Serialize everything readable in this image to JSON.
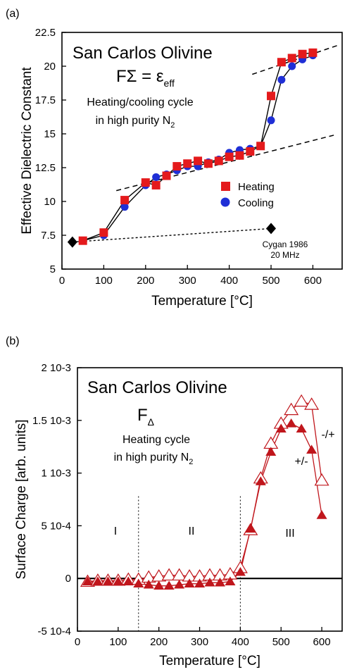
{
  "panels": [
    {
      "tag": "(a)",
      "title": "San Carlos Olivine",
      "formula_main": "FΣ = ε",
      "formula_sub": "eff",
      "note_line1": "Heating/cooling cycle",
      "note_line2": "in high purity N",
      "note_sub": "2",
      "ref_line1": "Cygan 1986",
      "ref_line2": "20 MHz"
    },
    {
      "tag": "(b)",
      "title": "San Carlos Olivine",
      "formula_main": "F",
      "formula_sub": "Δ",
      "note_line1": "Heating cycle",
      "note_line2": "in high purity N",
      "note_sub": "2",
      "region_labels": [
        "I",
        "II",
        "III"
      ],
      "curve_labels": [
        "-/+",
        "+/-"
      ]
    }
  ],
  "chart_data": [
    {
      "type": "scatter",
      "xlabel": "Temperature [°C]",
      "ylabel": "Effective Dielectric Constant",
      "xlim": [
        0,
        670
      ],
      "ylim": [
        5,
        22.5
      ],
      "xticks": [
        0,
        100,
        200,
        300,
        400,
        500,
        600
      ],
      "yticks": [
        5,
        7.5,
        10,
        12.5,
        15,
        17.5,
        20,
        22.5
      ],
      "ytick_labels": [
        "5",
        "7.5",
        "10",
        "12.5",
        "15",
        "17.5",
        "20",
        "22.5"
      ],
      "legend_position": "right-middle",
      "series": [
        {
          "name": "Heating",
          "color": "#e41a1c",
          "marker": "square",
          "x": [
            50,
            100,
            150,
            200,
            225,
            250,
            275,
            300,
            325,
            350,
            375,
            400,
            425,
            450,
            475,
            500,
            525,
            550,
            575,
            600
          ],
          "y": [
            7.1,
            7.7,
            10.1,
            11.4,
            11.2,
            11.9,
            12.6,
            12.8,
            13.0,
            12.8,
            13.0,
            13.3,
            13.4,
            13.7,
            14.1,
            17.8,
            20.3,
            20.6,
            20.9,
            21.0
          ]
        },
        {
          "name": "Cooling",
          "color": "#1f2fd6",
          "marker": "circle",
          "x": [
            100,
            150,
            200,
            225,
            250,
            275,
            300,
            325,
            350,
            375,
            400,
            425,
            450,
            475,
            500,
            525,
            550,
            575,
            600
          ],
          "y": [
            7.5,
            9.6,
            11.2,
            11.8,
            12.0,
            12.3,
            12.6,
            12.6,
            12.9,
            13.1,
            13.6,
            13.8,
            13.9,
            14.1,
            16.0,
            19.0,
            20.0,
            20.5,
            20.8
          ]
        },
        {
          "name": "Cygan 1986",
          "color": "#000000",
          "marker": "diamond",
          "x": [
            25,
            500
          ],
          "y": [
            7.0,
            8.0
          ]
        }
      ]
    },
    {
      "type": "scatter",
      "xlabel": "Temperature [°C]",
      "ylabel": "Surface Charge [arb. units]",
      "xlim": [
        0,
        650
      ],
      "ylim": [
        -0.0005,
        0.002
      ],
      "xticks": [
        0,
        100,
        200,
        300,
        400,
        500,
        600
      ],
      "yticks": [
        -0.0005,
        0,
        0.0005,
        0.001,
        0.0015,
        0.002
      ],
      "ytick_labels": [
        "-5 10-4",
        "0",
        "5 10-4",
        "1 10-3",
        "1.5 10-3",
        "2 10-3"
      ],
      "region_boundaries": [
        150,
        400
      ],
      "series": [
        {
          "name": "-/+",
          "color": "#c0161c",
          "marker": "triangle-open",
          "x": [
            25,
            50,
            75,
            100,
            125,
            150,
            175,
            200,
            225,
            250,
            275,
            300,
            325,
            350,
            375,
            400,
            425,
            450,
            475,
            500,
            525,
            550,
            575,
            600
          ],
          "y": [
            -3e-05,
            -2e-05,
            -2e-05,
            -2e-05,
            -1e-05,
            -1e-05,
            1e-05,
            2e-05,
            3e-05,
            3e-05,
            2e-05,
            2e-05,
            3e-05,
            3e-05,
            4e-05,
            0.0001,
            0.00046,
            0.00095,
            0.00128,
            0.00147,
            0.0016,
            0.00168,
            0.00165,
            0.00093
          ]
        },
        {
          "name": "+/-",
          "color": "#c0161c",
          "marker": "triangle-filled",
          "x": [
            25,
            50,
            75,
            100,
            125,
            150,
            175,
            200,
            225,
            250,
            275,
            300,
            325,
            350,
            375,
            400,
            425,
            450,
            475,
            500,
            525,
            550,
            575,
            600
          ],
          "y": [
            -3e-05,
            -3e-05,
            -3e-05,
            -3e-05,
            -3e-05,
            -5e-05,
            -6e-05,
            -7e-05,
            -7e-05,
            -6e-05,
            -5e-05,
            -5e-05,
            -4e-05,
            -4e-05,
            -3e-05,
            6e-05,
            0.00047,
            0.00092,
            0.0012,
            0.00142,
            0.00147,
            0.00142,
            0.00122,
            0.0006
          ]
        }
      ]
    }
  ]
}
